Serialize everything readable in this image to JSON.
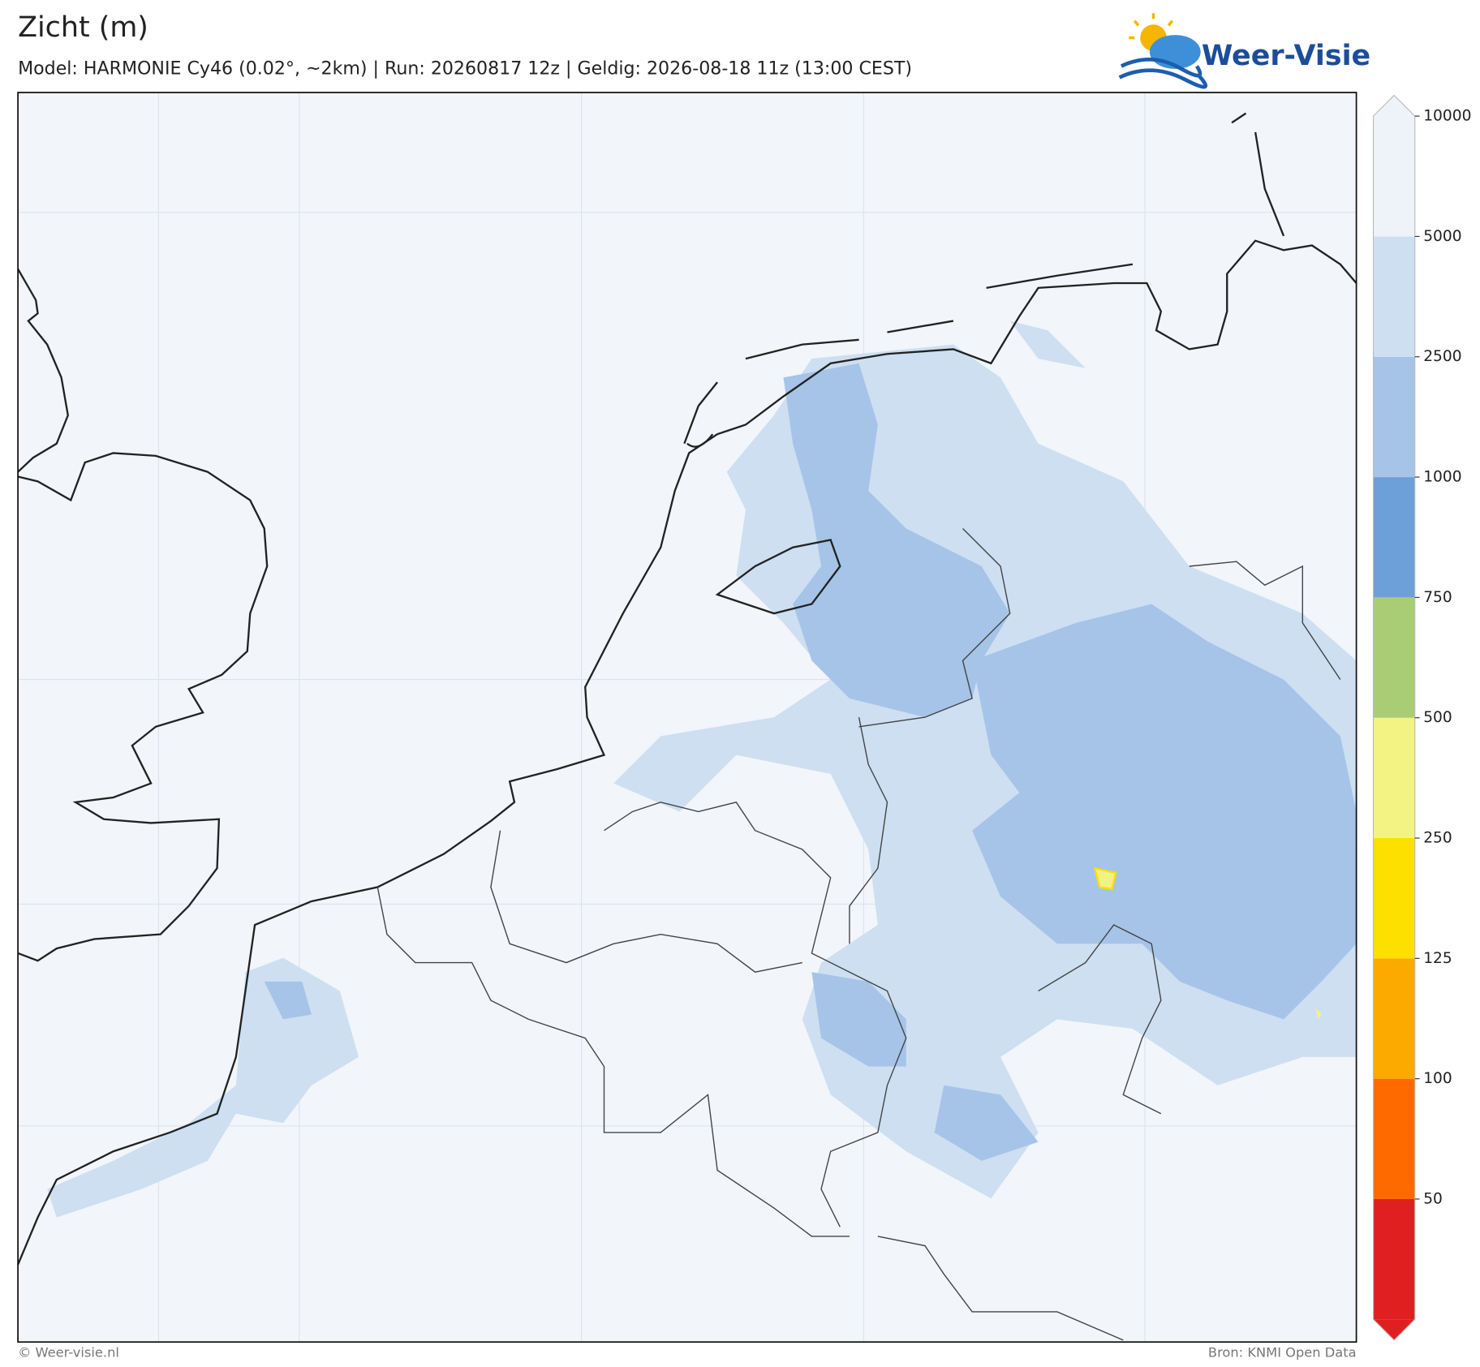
{
  "header": {
    "title": "Zicht (m)",
    "subtitle": "Model: HARMONIE Cy46 (0.02°, ~2km)  |  Run: 20260817 12z  |  Geldig: 2026-08-18 11z (13:00 CEST)"
  },
  "logo": "Weer-Visie",
  "colorbar": {
    "levels": [
      50,
      100,
      125,
      250,
      500,
      750,
      1000,
      2500,
      5000,
      10000
    ],
    "colors": [
      "#e02020",
      "#ff6a00",
      "#fdaa00",
      "#fde000",
      "#f3f384",
      "#a8cd74",
      "#6d9fd9",
      "#a6c4e8",
      "#cddff1",
      "#eef3f9",
      "#eef3f9"
    ]
  },
  "footer": {
    "left": "© Weer-visie.nl",
    "right": "Bron: KNMI Open Data"
  }
}
